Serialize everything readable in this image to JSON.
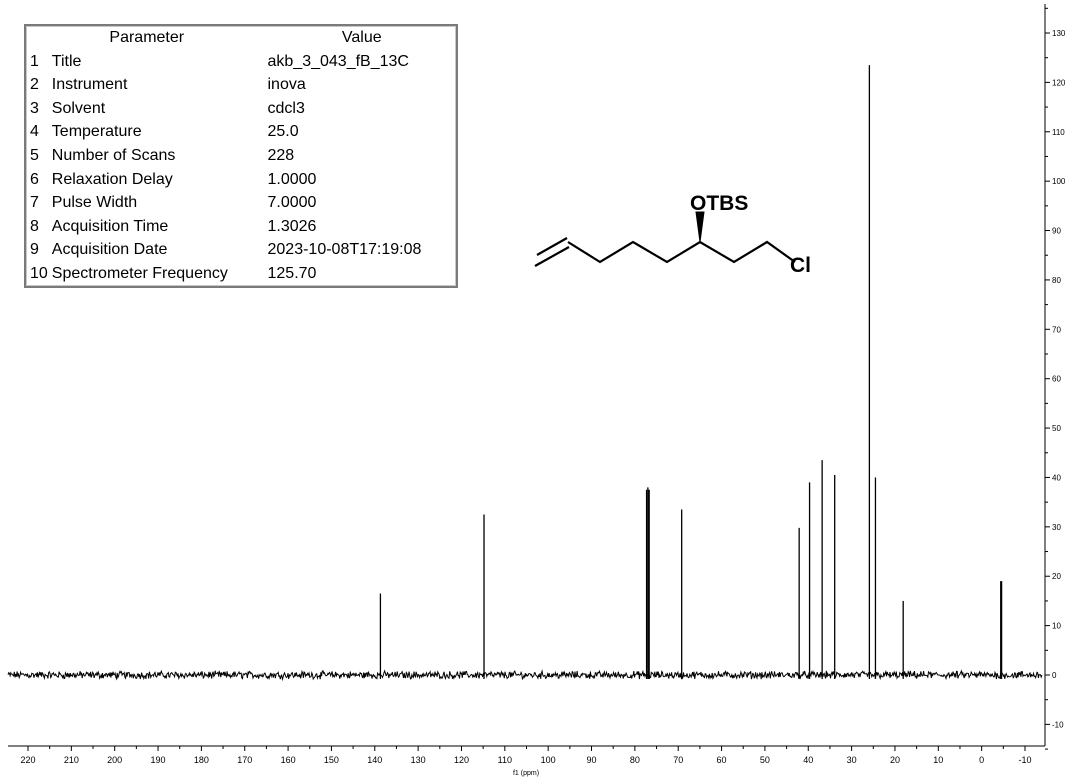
{
  "parameters_table": {
    "header_parameter": "Parameter",
    "header_value": "Value",
    "rows": [
      {
        "index": "1",
        "parameter": "Title",
        "value": "akb_3_043_fB_13C"
      },
      {
        "index": "2",
        "parameter": "Instrument",
        "value": "inova"
      },
      {
        "index": "3",
        "parameter": "Solvent",
        "value": "cdcl3"
      },
      {
        "index": "4",
        "parameter": "Temperature",
        "value": "25.0"
      },
      {
        "index": "5",
        "parameter": "Number of Scans",
        "value": "228"
      },
      {
        "index": "6",
        "parameter": "Relaxation Delay",
        "value": "1.0000"
      },
      {
        "index": "7",
        "parameter": "Pulse Width",
        "value": "7.0000"
      },
      {
        "index": "8",
        "parameter": "Acquisition Time",
        "value": "1.3026"
      },
      {
        "index": "9",
        "parameter": "Acquisition Date",
        "value": "2023-10-08T17:19:08"
      },
      {
        "index": "10",
        "parameter": "Spectrometer Frequency",
        "value": "125.70"
      }
    ]
  },
  "structure": {
    "label_otbs": "OTBS",
    "label_cl": "Cl"
  },
  "chart_data": {
    "type": "line",
    "xlabel": "f1 (ppm)",
    "ylabel": "",
    "x_reversed": true,
    "xlim": [
      -15,
      225
    ],
    "ylim": [
      -15,
      135
    ],
    "x_ticks": [
      220,
      210,
      200,
      190,
      180,
      170,
      160,
      150,
      140,
      130,
      120,
      110,
      100,
      90,
      80,
      70,
      60,
      50,
      40,
      30,
      20,
      10,
      0,
      -10
    ],
    "y_ticks": [
      -10,
      0,
      10,
      20,
      30,
      40,
      50,
      60,
      70,
      80,
      90,
      100,
      110,
      120,
      130
    ],
    "line_color": "#000000",
    "baseline": 0,
    "peaks": [
      {
        "ppm": 138.7,
        "height": 16.5
      },
      {
        "ppm": 114.8,
        "height": 32.5
      },
      {
        "ppm": 77.3,
        "height": 37.5
      },
      {
        "ppm": 77.0,
        "height": 38.0
      },
      {
        "ppm": 76.7,
        "height": 37.5
      },
      {
        "ppm": 69.2,
        "height": 33.5
      },
      {
        "ppm": 42.1,
        "height": 29.8
      },
      {
        "ppm": 39.7,
        "height": 39.0
      },
      {
        "ppm": 36.8,
        "height": 43.5
      },
      {
        "ppm": 33.9,
        "height": 40.5
      },
      {
        "ppm": 25.9,
        "height": 123.5
      },
      {
        "ppm": 24.5,
        "height": 40.0
      },
      {
        "ppm": 18.1,
        "height": 15.0
      },
      {
        "ppm": -4.4,
        "height": 19.0
      },
      {
        "ppm": -4.6,
        "height": 19.0
      }
    ]
  }
}
